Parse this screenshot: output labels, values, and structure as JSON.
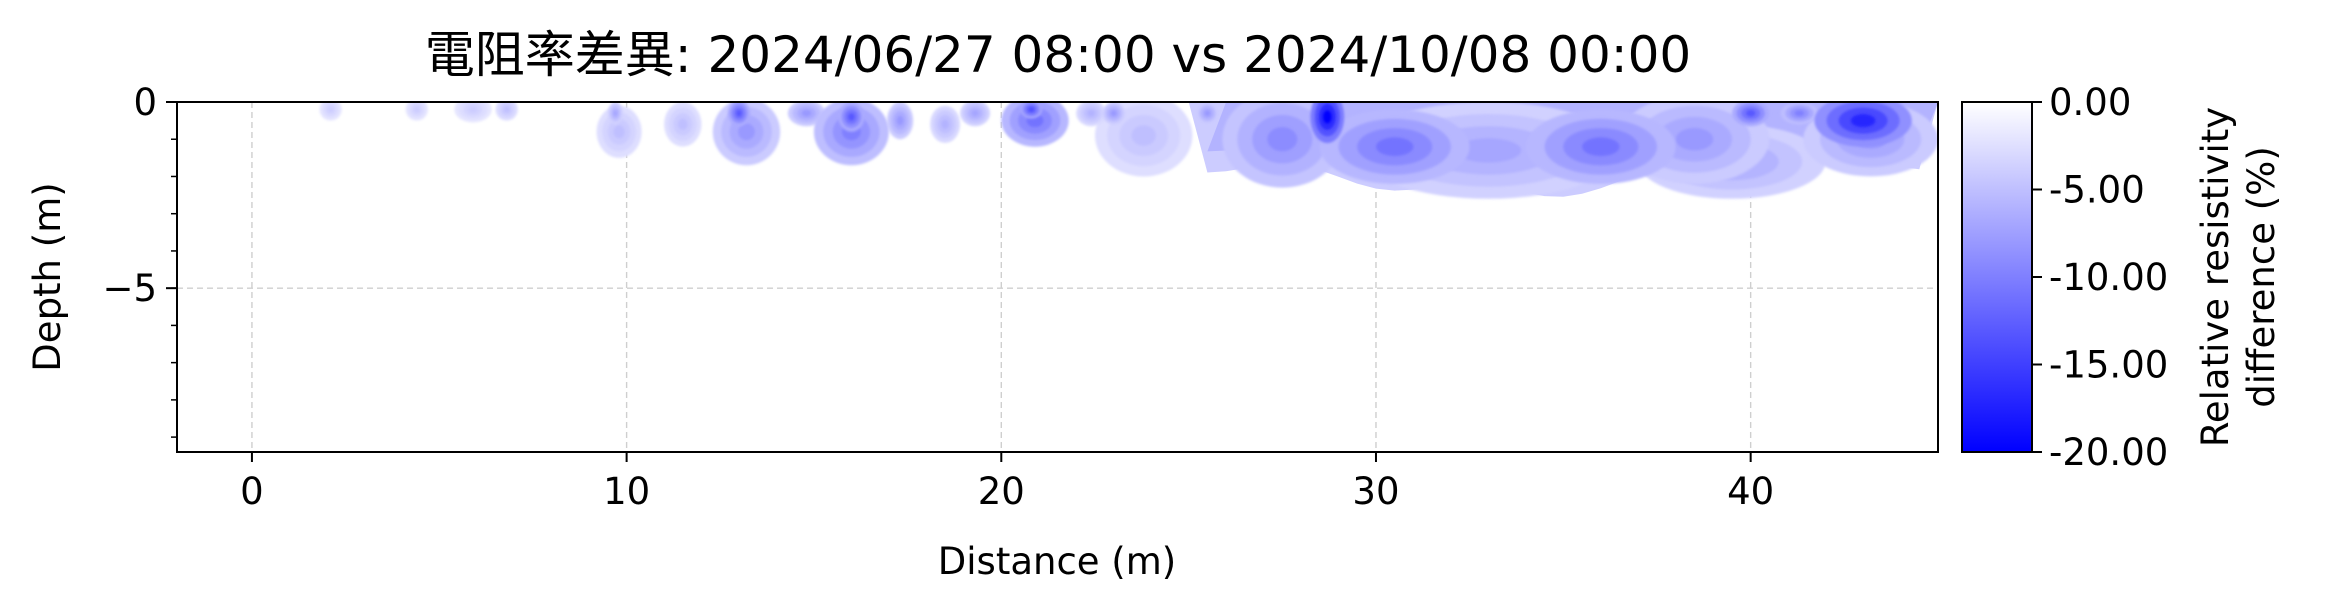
{
  "chart_data": {
    "type": "heatmap",
    "title": "電阻率差異: 2024/06/27 08:00 vs 2024/10/08 00:00",
    "xlabel": "Distance (m)",
    "ylabel": "Depth (m)",
    "xlim": [
      -2,
      45
    ],
    "ylim": [
      -9.4,
      0
    ],
    "x_ticks": [
      0,
      10,
      20,
      30,
      40
    ],
    "x_tick_labels": [
      "0",
      "10",
      "20",
      "30",
      "40"
    ],
    "y_ticks": [
      0,
      -5
    ],
    "y_tick_labels": [
      "0",
      "−5"
    ],
    "y_minor_step": 1,
    "grid": true,
    "colorbar": {
      "label_line1": "Relative resistivity",
      "label_line2": "difference (%)",
      "range": [
        -20,
        0
      ],
      "ticks": [
        0,
        -5,
        -10,
        -15,
        -20
      ],
      "tick_labels": [
        "0.00",
        "-5.00",
        "-10.00",
        "-15.00",
        "-20.00"
      ],
      "color_min": "#0000ff",
      "color_max": "#ffffff"
    },
    "anomalies": [
      {
        "x": 2.1,
        "depth": 0.2,
        "value": -4,
        "rx": 0.3,
        "rd": 0.3
      },
      {
        "x": 4.4,
        "depth": 0.2,
        "value": -4,
        "rx": 0.3,
        "rd": 0.3
      },
      {
        "x": 5.9,
        "depth": 0.2,
        "value": -4,
        "rx": 0.5,
        "rd": 0.35
      },
      {
        "x": 6.8,
        "depth": 0.2,
        "value": -5,
        "rx": 0.3,
        "rd": 0.3
      },
      {
        "x": 9.8,
        "depth": 0.8,
        "value": -5,
        "rx": 0.6,
        "rd": 0.7
      },
      {
        "x": 9.7,
        "depth": 0.3,
        "value": -7,
        "rx": 0.2,
        "rd": 0.3
      },
      {
        "x": 11.5,
        "depth": 0.6,
        "value": -5,
        "rx": 0.5,
        "rd": 0.6
      },
      {
        "x": 13.2,
        "depth": 0.8,
        "value": -8,
        "rx": 0.9,
        "rd": 0.9
      },
      {
        "x": 13.0,
        "depth": 0.3,
        "value": -13,
        "rx": 0.3,
        "rd": 0.35
      },
      {
        "x": 14.8,
        "depth": 0.3,
        "value": -8,
        "rx": 0.5,
        "rd": 0.35
      },
      {
        "x": 16.0,
        "depth": 0.8,
        "value": -10,
        "rx": 1.0,
        "rd": 0.9
      },
      {
        "x": 16.0,
        "depth": 0.4,
        "value": -13,
        "rx": 0.35,
        "rd": 0.4
      },
      {
        "x": 17.3,
        "depth": 0.5,
        "value": -8,
        "rx": 0.35,
        "rd": 0.5
      },
      {
        "x": 18.5,
        "depth": 0.6,
        "value": -6,
        "rx": 0.4,
        "rd": 0.5
      },
      {
        "x": 19.3,
        "depth": 0.3,
        "value": -7,
        "rx": 0.4,
        "rd": 0.35
      },
      {
        "x": 20.9,
        "depth": 0.5,
        "value": -11,
        "rx": 0.9,
        "rd": 0.7
      },
      {
        "x": 20.8,
        "depth": 0.2,
        "value": -14,
        "rx": 0.3,
        "rd": 0.25
      },
      {
        "x": 22.4,
        "depth": 0.3,
        "value": -6,
        "rx": 0.4,
        "rd": 0.35
      },
      {
        "x": 23.8,
        "depth": 0.9,
        "value": -5,
        "rx": 1.3,
        "rd": 1.1
      },
      {
        "x": 23.0,
        "depth": 0.3,
        "value": -8,
        "rx": 0.3,
        "rd": 0.3
      },
      {
        "x": 25.5,
        "depth": 0.3,
        "value": -8,
        "rx": 0.3,
        "rd": 0.3
      },
      {
        "x": 27.5,
        "depth": 1.0,
        "value": -9,
        "rx": 1.6,
        "rd": 1.3
      },
      {
        "x": 28.7,
        "depth": 0.4,
        "value": -20,
        "rx": 0.45,
        "rd": 0.7
      },
      {
        "x": 30.5,
        "depth": 1.2,
        "value": -11,
        "rx": 2.0,
        "rd": 1.0
      },
      {
        "x": 33.0,
        "depth": 1.3,
        "value": -7,
        "rx": 3.5,
        "rd": 1.3
      },
      {
        "x": 36.0,
        "depth": 1.2,
        "value": -11,
        "rx": 2.0,
        "rd": 1.0
      },
      {
        "x": 38.5,
        "depth": 1.0,
        "value": -8,
        "rx": 2.0,
        "rd": 1.2
      },
      {
        "x": 39.5,
        "depth": 1.6,
        "value": -7,
        "rx": 2.5,
        "rd": 1.0
      },
      {
        "x": 40.0,
        "depth": 0.3,
        "value": -13,
        "rx": 0.5,
        "rd": 0.35
      },
      {
        "x": 41.3,
        "depth": 0.3,
        "value": -10,
        "rx": 0.5,
        "rd": 0.3
      },
      {
        "x": 43.0,
        "depth": 0.5,
        "value": -17,
        "rx": 1.3,
        "rd": 0.7
      },
      {
        "x": 43.2,
        "depth": 1.0,
        "value": -8,
        "rx": 1.8,
        "rd": 1.0
      }
    ]
  }
}
